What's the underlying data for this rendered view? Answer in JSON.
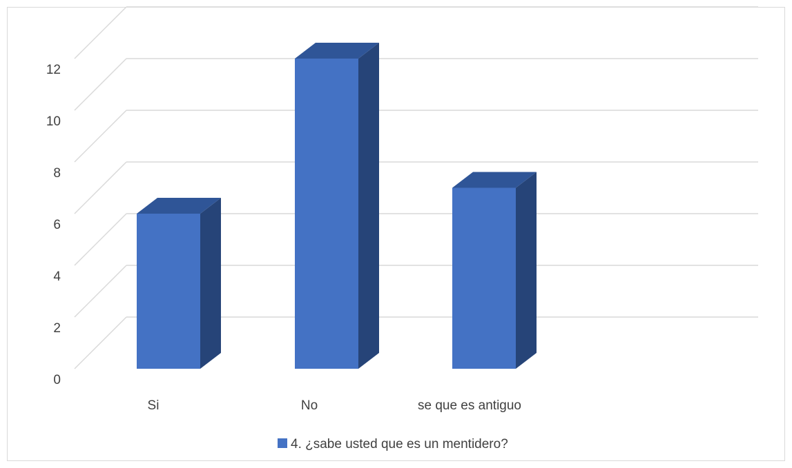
{
  "chart_data": {
    "type": "bar",
    "title": "",
    "xlabel": "",
    "ylabel": "",
    "categories": [
      "Si",
      "No",
      "se que es antiguo"
    ],
    "series": [
      {
        "name": "4. ¿sabe usted que es un mentidero?",
        "values": [
          6,
          12,
          7
        ]
      }
    ],
    "ylim": [
      0,
      12
    ],
    "yticks": [
      "0",
      "2",
      "4",
      "6",
      "8",
      "10",
      "12"
    ],
    "grid": true,
    "legend_position": "bottom",
    "style_3d": true
  },
  "colors": {
    "bar_front": "#4472C4",
    "bar_top": "#2F5597",
    "bar_side": "#264478",
    "gridline": "#D9D9D9",
    "border": "#D9D9D9",
    "text": "#404040"
  }
}
